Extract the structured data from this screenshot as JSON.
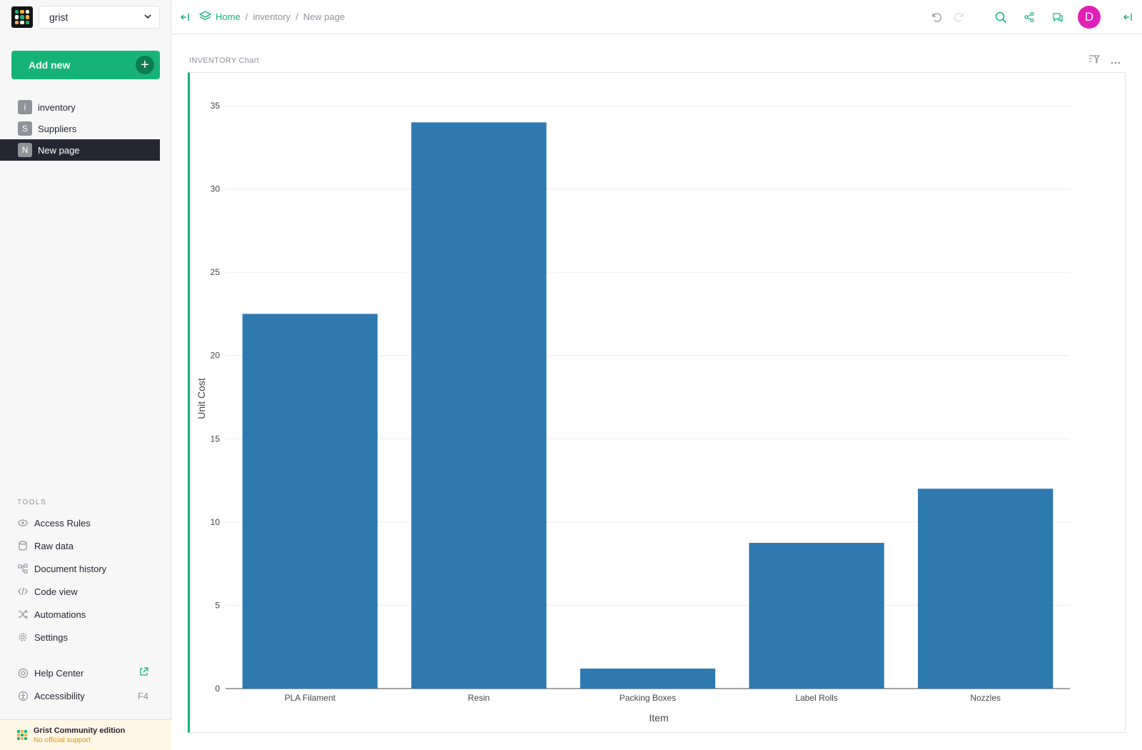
{
  "org": {
    "name": "grist"
  },
  "sidebar": {
    "add_new": "Add new",
    "pages": [
      {
        "initial": "i",
        "label": "inventory"
      },
      {
        "initial": "S",
        "label": "Suppliers"
      },
      {
        "initial": "N",
        "label": "New page"
      }
    ],
    "tools_heading": "TOOLS",
    "tools": [
      {
        "icon": "eye-icon",
        "label": "Access Rules"
      },
      {
        "icon": "database-icon",
        "label": "Raw data"
      },
      {
        "icon": "history-icon",
        "label": "Document history"
      },
      {
        "icon": "code-icon",
        "label": "Code view"
      },
      {
        "icon": "shuffle-icon",
        "label": "Automations"
      },
      {
        "icon": "gear-icon",
        "label": "Settings"
      }
    ],
    "help": [
      {
        "icon": "lifebuoy-icon",
        "label": "Help Center",
        "right": ""
      },
      {
        "icon": "accessibility-icon",
        "label": "Accessibility",
        "right": "F4"
      }
    ],
    "edition": {
      "title": "Grist Community edition",
      "subtitle": "No official support"
    }
  },
  "breadcrumb": {
    "home": "Home",
    "doc": "inventory",
    "page": "New page"
  },
  "user": {
    "initial": "D",
    "color": "#e21fb7"
  },
  "colors": {
    "accent": "#16b378",
    "bar": "#2e79b0"
  },
  "widget": {
    "title": "INVENTORY Chart"
  },
  "chart_data": {
    "type": "bar",
    "categories": [
      "PLA Filament",
      "Resin",
      "Packing Boxes",
      "Label Rolls",
      "Nozzles"
    ],
    "values": [
      22.5,
      34,
      1.2,
      8.75,
      12
    ],
    "xlabel": "Item",
    "ylabel": "Unit Cost",
    "ylim": [
      0,
      35
    ],
    "yticks": [
      0,
      5,
      10,
      15,
      20,
      25,
      30,
      35
    ],
    "grid": true
  }
}
